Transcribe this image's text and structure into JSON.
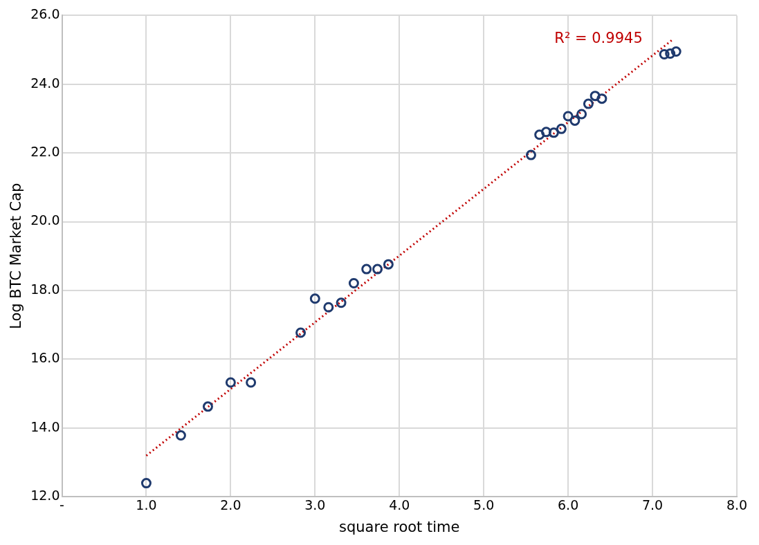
{
  "chart_data": {
    "type": "scatter",
    "xlabel": "square root time",
    "ylabel": "Log BTC Market Cap",
    "xlim": [
      0,
      8
    ],
    "xticks": [
      {
        "value": 0,
        "label": "-"
      },
      {
        "value": 1,
        "label": "1.0"
      },
      {
        "value": 2,
        "label": "2.0"
      },
      {
        "value": 3,
        "label": "3.0"
      },
      {
        "value": 4,
        "label": "4.0"
      },
      {
        "value": 5,
        "label": "5.0"
      },
      {
        "value": 6,
        "label": "6.0"
      },
      {
        "value": 7,
        "label": "7.0"
      },
      {
        "value": 8,
        "label": "8.0"
      }
    ],
    "ylim": [
      12,
      26
    ],
    "yticks": [
      {
        "value": 12,
        "label": "12.0"
      },
      {
        "value": 14,
        "label": "14.0"
      },
      {
        "value": 16,
        "label": "16.0"
      },
      {
        "value": 18,
        "label": "18.0"
      },
      {
        "value": 20,
        "label": "20.0"
      },
      {
        "value": 22,
        "label": "22.0"
      },
      {
        "value": 24,
        "label": "24.0"
      },
      {
        "value": 26,
        "label": "26.0"
      }
    ],
    "grid": true,
    "legend": false,
    "series": [
      {
        "type": "scatter",
        "color": "#1f3a6e",
        "marker": "circle",
        "x": [
          1.0,
          1.41,
          1.73,
          2.0,
          2.24,
          2.83,
          3.0,
          3.16,
          3.31,
          3.46,
          3.61,
          3.74,
          3.87,
          5.56,
          5.66,
          5.74,
          5.83,
          5.92,
          6.0,
          6.08,
          6.16,
          6.24,
          6.32,
          6.4,
          7.14,
          7.21,
          7.28
        ],
        "values": [
          12.39,
          13.78,
          14.62,
          15.32,
          15.32,
          16.77,
          17.76,
          17.51,
          17.64,
          18.21,
          18.62,
          18.62,
          18.76,
          21.94,
          22.53,
          22.61,
          22.59,
          22.7,
          23.07,
          22.94,
          23.13,
          23.43,
          23.66,
          23.58,
          24.87,
          24.89,
          24.95
        ]
      },
      {
        "type": "line",
        "color": "#c00000",
        "marker": "none",
        "line_style": "dotted",
        "x": [
          1.0,
          7.25
        ],
        "values": [
          13.19,
          25.32
        ]
      }
    ],
    "annotations": [
      "R² = 0.9945"
    ]
  }
}
